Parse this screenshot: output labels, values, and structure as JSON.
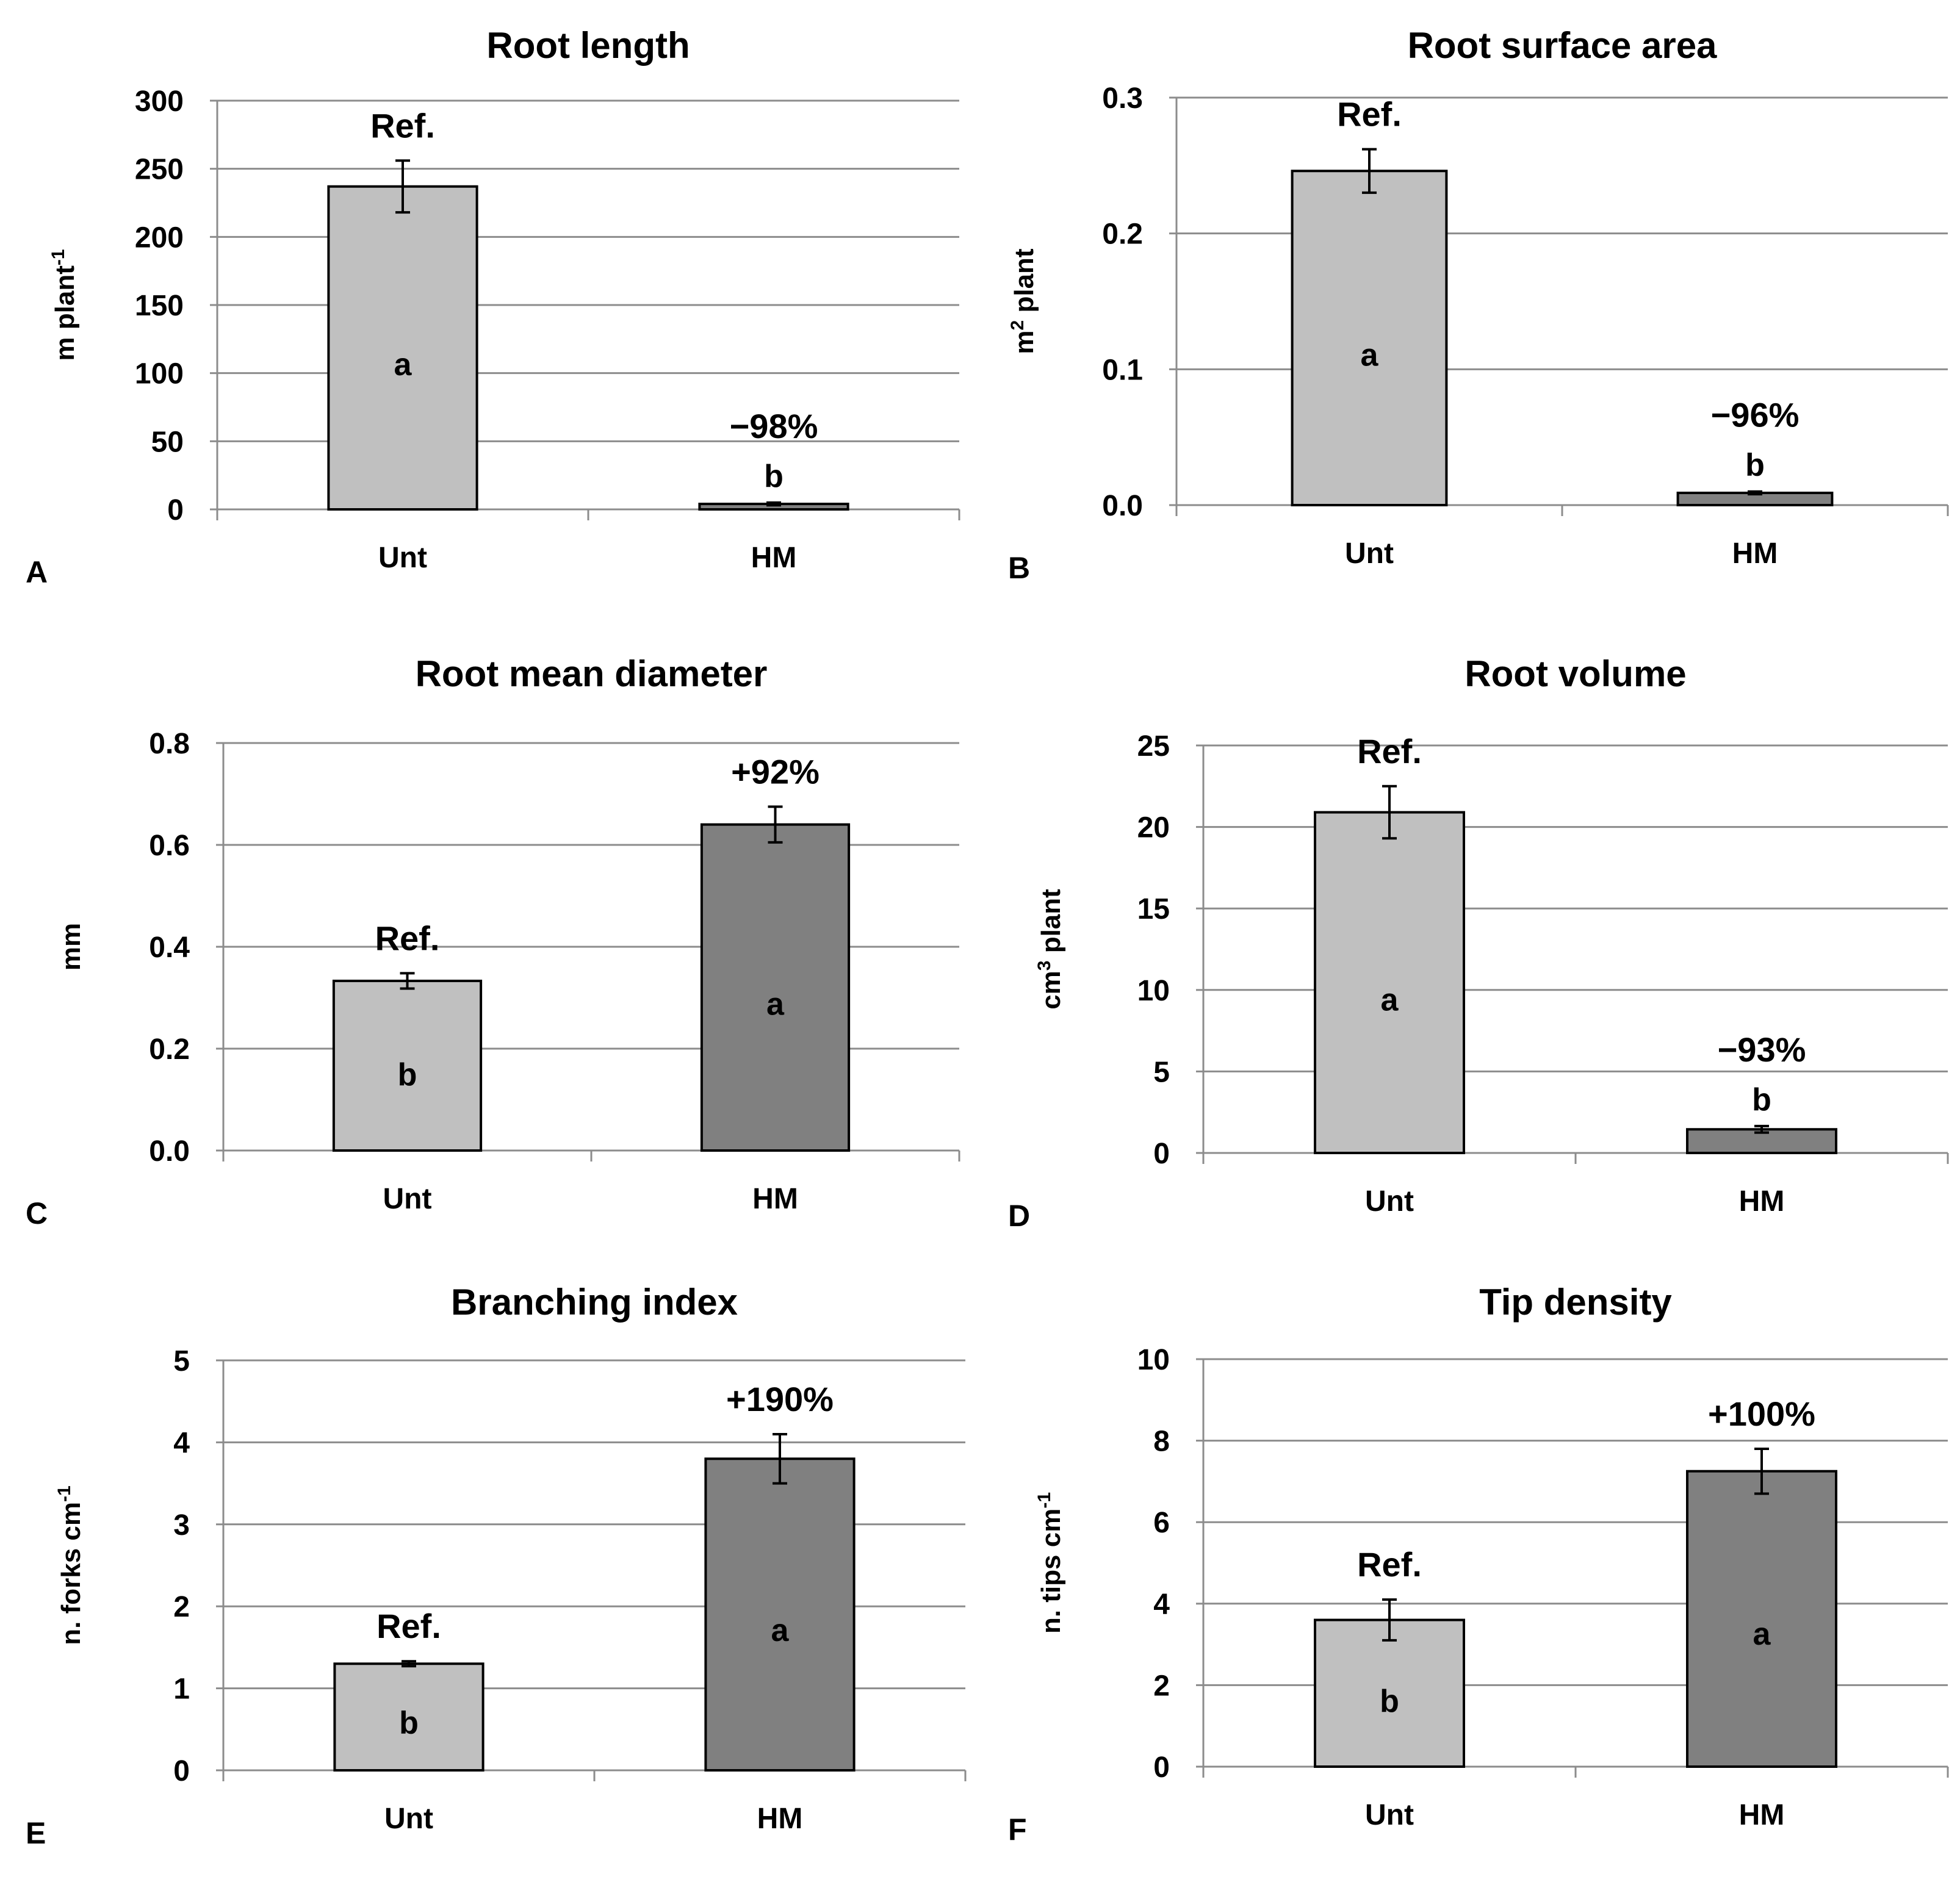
{
  "figure": {
    "colors": {
      "unt": "#c0c0c0",
      "hm": "#808080",
      "grid": "#8c8c8c",
      "edge": "#000000"
    },
    "chart_data": [
      {
        "type": "bar",
        "panel": "A",
        "title": "Root length",
        "ylabel": {
          "pre": "m plant",
          "sup": "-1",
          "post": ""
        },
        "categories": [
          "Unt",
          "HM"
        ],
        "values": [
          237,
          4
        ],
        "errors": [
          19,
          1
        ],
        "ylim": [
          0,
          300
        ],
        "yticks": [
          0,
          50,
          100,
          150,
          200,
          250,
          300
        ],
        "tick_labels": [
          "0",
          "50",
          "100",
          "150",
          "200",
          "250",
          "300"
        ],
        "annotations": [
          "Ref.",
          "−98%"
        ],
        "letters": [
          "a",
          "b"
        ]
      },
      {
        "type": "bar",
        "panel": "B",
        "title": "Root surface area",
        "ylabel": {
          "pre": "m",
          "sup": "2",
          "post": " plant"
        },
        "categories": [
          "Unt",
          "HM"
        ],
        "values": [
          0.246,
          0.009
        ],
        "errors": [
          0.016,
          0.001
        ],
        "ylim": [
          0,
          0.3
        ],
        "yticks": [
          0,
          0.1,
          0.2,
          0.3
        ],
        "tick_labels": [
          "0.0",
          "0.1",
          "0.2",
          "0.3"
        ],
        "annotations": [
          "Ref.",
          "−96%"
        ],
        "letters": [
          "a",
          "b"
        ]
      },
      {
        "type": "bar",
        "panel": "C",
        "title": "Root mean diameter",
        "ylabel": {
          "pre": "mm",
          "sup": "",
          "post": ""
        },
        "categories": [
          "Unt",
          "HM"
        ],
        "values": [
          0.333,
          0.64
        ],
        "errors": [
          0.015,
          0.035
        ],
        "ylim": [
          0,
          0.8
        ],
        "yticks": [
          0,
          0.2,
          0.4,
          0.6,
          0.8
        ],
        "tick_labels": [
          "0.0",
          "0.2",
          "0.4",
          "0.6",
          "0.8"
        ],
        "annotations": [
          "Ref.",
          "+92%"
        ],
        "letters": [
          "b",
          "a"
        ]
      },
      {
        "type": "bar",
        "panel": "D",
        "title": "Root volume",
        "ylabel": {
          "pre": "cm",
          "sup": "3",
          "post": " plant"
        },
        "categories": [
          "Unt",
          "HM"
        ],
        "values": [
          20.9,
          1.45
        ],
        "errors": [
          1.6,
          0.2
        ],
        "ylim": [
          0,
          25
        ],
        "yticks": [
          0,
          5,
          10,
          15,
          20,
          25
        ],
        "tick_labels": [
          "0",
          "5",
          "10",
          "15",
          "20",
          "25"
        ],
        "annotations": [
          "Ref.",
          "−93%"
        ],
        "letters": [
          "a",
          "b"
        ]
      },
      {
        "type": "bar",
        "panel": "E",
        "title": "Branching index",
        "ylabel": {
          "pre": "n. forks cm",
          "sup": "-1",
          "post": ""
        },
        "categories": [
          "Unt",
          "HM"
        ],
        "values": [
          1.3,
          3.8
        ],
        "errors": [
          0.03,
          0.3
        ],
        "ylim": [
          0,
          5
        ],
        "yticks": [
          0,
          1,
          2,
          3,
          4,
          5
        ],
        "tick_labels": [
          "0",
          "1",
          "2",
          "3",
          "4",
          "5"
        ],
        "annotations": [
          "Ref.",
          "+190%"
        ],
        "letters": [
          "b",
          "a"
        ]
      },
      {
        "type": "bar",
        "panel": "F",
        "title": "Tip density",
        "ylabel": {
          "pre": "n. tips cm",
          "sup": "-1",
          "post": ""
        },
        "categories": [
          "Unt",
          "HM"
        ],
        "values": [
          3.6,
          7.25
        ],
        "errors": [
          0.5,
          0.55
        ],
        "ylim": [
          0,
          10
        ],
        "yticks": [
          0,
          2,
          4,
          6,
          8,
          10
        ],
        "tick_labels": [
          "0",
          "2",
          "4",
          "6",
          "8",
          "10"
        ],
        "annotations": [
          "Ref.",
          "+100%"
        ],
        "letters": [
          "b",
          "a"
        ]
      }
    ]
  }
}
